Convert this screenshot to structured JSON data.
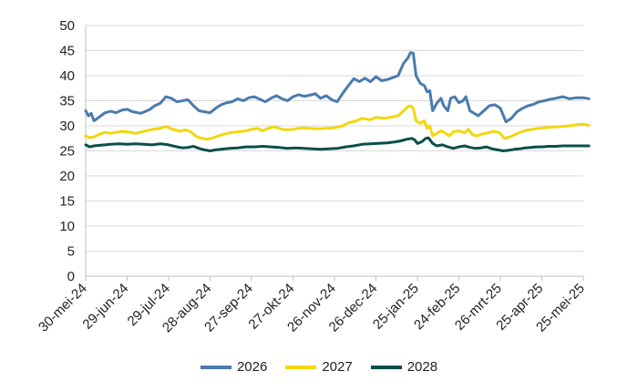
{
  "chart_data": {
    "type": "line",
    "title": "",
    "xlabel": "",
    "ylabel": "",
    "ylim": [
      0,
      50
    ],
    "y_ticks": [
      0,
      5,
      10,
      15,
      20,
      25,
      30,
      35,
      40,
      45,
      50
    ],
    "x_tick_labels": [
      "30-mei-24",
      "29-jun-24",
      "29-jul-24",
      "28-aug-24",
      "27-sep-24",
      "27-okt-24",
      "26-nov-24",
      "26-dec-24",
      "25-jan-25",
      "24-feb-25",
      "26-mrt-25",
      "25-apr-25",
      "25-mei-25"
    ],
    "x_tick_days": [
      0,
      30,
      60,
      90,
      120,
      150,
      180,
      210,
      240,
      270,
      300,
      330,
      360
    ],
    "grid": true,
    "legend_position": "bottom",
    "series": [
      {
        "name": "2026",
        "color": "#4A7BAE",
        "points": [
          [
            0,
            33.0
          ],
          [
            2,
            32.0
          ],
          [
            4,
            32.5
          ],
          [
            6,
            31.0
          ],
          [
            10,
            31.8
          ],
          [
            14,
            32.6
          ],
          [
            18,
            32.9
          ],
          [
            22,
            32.6
          ],
          [
            26,
            33.1
          ],
          [
            30,
            33.3
          ],
          [
            34,
            32.8
          ],
          [
            40,
            32.5
          ],
          [
            46,
            33.2
          ],
          [
            50,
            34.0
          ],
          [
            54,
            34.5
          ],
          [
            58,
            35.8
          ],
          [
            62,
            35.5
          ],
          [
            66,
            34.8
          ],
          [
            70,
            35.0
          ],
          [
            74,
            35.2
          ],
          [
            78,
            34.0
          ],
          [
            82,
            33.0
          ],
          [
            86,
            32.8
          ],
          [
            90,
            32.6
          ],
          [
            94,
            33.5
          ],
          [
            98,
            34.2
          ],
          [
            102,
            34.6
          ],
          [
            106,
            34.8
          ],
          [
            110,
            35.4
          ],
          [
            114,
            35.0
          ],
          [
            118,
            35.6
          ],
          [
            122,
            35.8
          ],
          [
            126,
            35.3
          ],
          [
            130,
            34.8
          ],
          [
            134,
            35.5
          ],
          [
            138,
            36.0
          ],
          [
            142,
            35.4
          ],
          [
            146,
            35.0
          ],
          [
            150,
            35.8
          ],
          [
            154,
            36.2
          ],
          [
            158,
            35.9
          ],
          [
            162,
            36.1
          ],
          [
            166,
            36.4
          ],
          [
            170,
            35.5
          ],
          [
            174,
            36.0
          ],
          [
            178,
            35.2
          ],
          [
            182,
            34.8
          ],
          [
            186,
            36.5
          ],
          [
            190,
            38.0
          ],
          [
            194,
            39.4
          ],
          [
            198,
            38.8
          ],
          [
            202,
            39.5
          ],
          [
            206,
            38.8
          ],
          [
            210,
            39.8
          ],
          [
            214,
            39.0
          ],
          [
            218,
            39.2
          ],
          [
            222,
            39.6
          ],
          [
            226,
            40.0
          ],
          [
            230,
            42.5
          ],
          [
            233,
            43.5
          ],
          [
            235,
            44.6
          ],
          [
            237,
            44.5
          ],
          [
            239,
            40.0
          ],
          [
            242,
            38.5
          ],
          [
            245,
            38.0
          ],
          [
            247,
            36.8
          ],
          [
            249,
            37.0
          ],
          [
            251,
            33.0
          ],
          [
            254,
            34.5
          ],
          [
            257,
            35.5
          ],
          [
            259,
            34.0
          ],
          [
            262,
            33.0
          ],
          [
            264,
            35.5
          ],
          [
            267,
            35.8
          ],
          [
            270,
            34.6
          ],
          [
            273,
            35.0
          ],
          [
            275,
            35.8
          ],
          [
            278,
            33.0
          ],
          [
            281,
            32.5
          ],
          [
            284,
            32.0
          ],
          [
            288,
            33.0
          ],
          [
            292,
            34.0
          ],
          [
            296,
            34.2
          ],
          [
            300,
            33.5
          ],
          [
            304,
            30.8
          ],
          [
            308,
            31.5
          ],
          [
            312,
            32.8
          ],
          [
            316,
            33.5
          ],
          [
            320,
            34.0
          ],
          [
            324,
            34.3
          ],
          [
            328,
            34.8
          ],
          [
            332,
            35.0
          ],
          [
            336,
            35.3
          ],
          [
            340,
            35.5
          ],
          [
            345,
            35.8
          ],
          [
            350,
            35.4
          ],
          [
            355,
            35.6
          ],
          [
            360,
            35.6
          ],
          [
            364,
            35.4
          ]
        ]
      },
      {
        "name": "2027",
        "color": "#F2D70F",
        "points": [
          [
            0,
            28.0
          ],
          [
            3,
            27.6
          ],
          [
            6,
            27.8
          ],
          [
            10,
            28.3
          ],
          [
            14,
            28.7
          ],
          [
            18,
            28.5
          ],
          [
            22,
            28.7
          ],
          [
            26,
            28.9
          ],
          [
            30,
            28.8
          ],
          [
            36,
            28.5
          ],
          [
            42,
            28.9
          ],
          [
            48,
            29.3
          ],
          [
            54,
            29.5
          ],
          [
            58,
            29.9
          ],
          [
            62,
            29.4
          ],
          [
            68,
            28.9
          ],
          [
            72,
            29.2
          ],
          [
            76,
            28.8
          ],
          [
            80,
            27.9
          ],
          [
            84,
            27.5
          ],
          [
            88,
            27.3
          ],
          [
            92,
            27.6
          ],
          [
            96,
            28.0
          ],
          [
            100,
            28.3
          ],
          [
            104,
            28.6
          ],
          [
            110,
            28.8
          ],
          [
            116,
            29.0
          ],
          [
            120,
            29.3
          ],
          [
            124,
            29.5
          ],
          [
            128,
            29.0
          ],
          [
            132,
            29.5
          ],
          [
            136,
            29.8
          ],
          [
            140,
            29.5
          ],
          [
            144,
            29.2
          ],
          [
            150,
            29.3
          ],
          [
            156,
            29.6
          ],
          [
            162,
            29.5
          ],
          [
            168,
            29.4
          ],
          [
            174,
            29.5
          ],
          [
            180,
            29.6
          ],
          [
            186,
            30.0
          ],
          [
            190,
            30.6
          ],
          [
            196,
            31.0
          ],
          [
            200,
            31.5
          ],
          [
            206,
            31.2
          ],
          [
            210,
            31.7
          ],
          [
            216,
            31.5
          ],
          [
            222,
            31.8
          ],
          [
            226,
            32.0
          ],
          [
            230,
            33.0
          ],
          [
            233,
            33.8
          ],
          [
            235,
            34.0
          ],
          [
            237,
            33.5
          ],
          [
            239,
            31.0
          ],
          [
            242,
            30.5
          ],
          [
            245,
            31.0
          ],
          [
            247,
            29.5
          ],
          [
            249,
            30.0
          ],
          [
            251,
            28.0
          ],
          [
            254,
            28.5
          ],
          [
            257,
            29.0
          ],
          [
            260,
            28.6
          ],
          [
            263,
            28.0
          ],
          [
            266,
            28.8
          ],
          [
            270,
            29.0
          ],
          [
            274,
            28.6
          ],
          [
            277,
            29.3
          ],
          [
            280,
            28.2
          ],
          [
            283,
            28.0
          ],
          [
            287,
            28.4
          ],
          [
            291,
            28.6
          ],
          [
            295,
            28.9
          ],
          [
            299,
            28.7
          ],
          [
            303,
            27.5
          ],
          [
            307,
            27.8
          ],
          [
            311,
            28.3
          ],
          [
            315,
            28.8
          ],
          [
            319,
            29.1
          ],
          [
            323,
            29.3
          ],
          [
            327,
            29.5
          ],
          [
            331,
            29.6
          ],
          [
            335,
            29.7
          ],
          [
            340,
            29.8
          ],
          [
            345,
            29.9
          ],
          [
            350,
            30.0
          ],
          [
            355,
            30.2
          ],
          [
            360,
            30.3
          ],
          [
            364,
            30.1
          ]
        ]
      },
      {
        "name": "2028",
        "color": "#0B4F4A",
        "points": [
          [
            0,
            26.2
          ],
          [
            3,
            25.8
          ],
          [
            6,
            26.0
          ],
          [
            10,
            26.1
          ],
          [
            14,
            26.2
          ],
          [
            18,
            26.3
          ],
          [
            24,
            26.4
          ],
          [
            30,
            26.3
          ],
          [
            36,
            26.4
          ],
          [
            42,
            26.3
          ],
          [
            48,
            26.2
          ],
          [
            54,
            26.4
          ],
          [
            60,
            26.2
          ],
          [
            66,
            25.8
          ],
          [
            70,
            25.6
          ],
          [
            74,
            25.7
          ],
          [
            78,
            25.9
          ],
          [
            82,
            25.5
          ],
          [
            86,
            25.2
          ],
          [
            90,
            25.0
          ],
          [
            94,
            25.2
          ],
          [
            98,
            25.3
          ],
          [
            104,
            25.5
          ],
          [
            110,
            25.6
          ],
          [
            116,
            25.8
          ],
          [
            122,
            25.8
          ],
          [
            128,
            25.9
          ],
          [
            134,
            25.8
          ],
          [
            140,
            25.7
          ],
          [
            146,
            25.5
          ],
          [
            152,
            25.6
          ],
          [
            158,
            25.5
          ],
          [
            164,
            25.4
          ],
          [
            170,
            25.3
          ],
          [
            176,
            25.4
          ],
          [
            182,
            25.5
          ],
          [
            188,
            25.8
          ],
          [
            194,
            26.0
          ],
          [
            200,
            26.3
          ],
          [
            206,
            26.4
          ],
          [
            212,
            26.5
          ],
          [
            218,
            26.6
          ],
          [
            224,
            26.8
          ],
          [
            228,
            27.0
          ],
          [
            232,
            27.3
          ],
          [
            236,
            27.5
          ],
          [
            238,
            27.2
          ],
          [
            240,
            26.5
          ],
          [
            243,
            26.8
          ],
          [
            246,
            27.5
          ],
          [
            248,
            27.6
          ],
          [
            251,
            26.5
          ],
          [
            254,
            26.0
          ],
          [
            258,
            26.2
          ],
          [
            262,
            25.8
          ],
          [
            266,
            25.5
          ],
          [
            270,
            25.8
          ],
          [
            274,
            26.0
          ],
          [
            278,
            25.7
          ],
          [
            282,
            25.5
          ],
          [
            286,
            25.6
          ],
          [
            290,
            25.8
          ],
          [
            294,
            25.4
          ],
          [
            298,
            25.2
          ],
          [
            302,
            25.0
          ],
          [
            306,
            25.1
          ],
          [
            310,
            25.3
          ],
          [
            314,
            25.4
          ],
          [
            318,
            25.6
          ],
          [
            322,
            25.7
          ],
          [
            326,
            25.8
          ],
          [
            330,
            25.8
          ],
          [
            335,
            25.9
          ],
          [
            340,
            25.9
          ],
          [
            345,
            26.0
          ],
          [
            350,
            26.0
          ],
          [
            355,
            26.0
          ],
          [
            360,
            26.0
          ],
          [
            364,
            26.0
          ]
        ]
      }
    ]
  }
}
